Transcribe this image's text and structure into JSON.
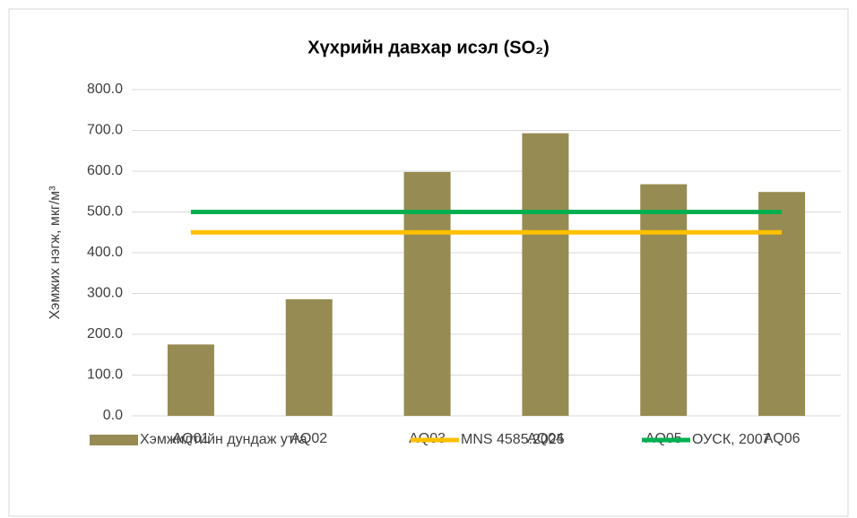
{
  "chart_data": {
    "type": "bar",
    "title": "Хүхрийн давхар исэл (SO₂)",
    "y_label": "Хэмжих нэгж, мкг/м³",
    "categories": [
      "AQ01",
      "AQ02",
      "AQ03",
      "AQ04",
      "AQ05",
      "AQ06"
    ],
    "series": [
      {
        "name": "Хэмжилтийн дундаж утга",
        "type": "bar",
        "color": "#968b52",
        "values": [
          175,
          286,
          598,
          693,
          568,
          549
        ]
      },
      {
        "name": "MNS 4585:2025",
        "type": "line",
        "color": "#ffc000",
        "values": [
          450,
          450,
          450,
          450,
          450,
          450
        ]
      },
      {
        "name": "ОУСК, 2007",
        "type": "line",
        "color": "#00b050",
        "values": [
          500,
          500,
          500,
          500,
          500,
          500
        ]
      }
    ],
    "ylim": [
      0,
      800
    ],
    "yticks": [
      {
        "value": 0,
        "label": "0.0"
      },
      {
        "value": 100,
        "label": "100.0"
      },
      {
        "value": 200,
        "label": "200.0"
      },
      {
        "value": 300,
        "label": "300.0"
      },
      {
        "value": 400,
        "label": "400.0"
      },
      {
        "value": 500,
        "label": "500.0"
      },
      {
        "value": 600,
        "label": "600.0"
      },
      {
        "value": 700,
        "label": "700.0"
      },
      {
        "value": 800,
        "label": "800.0"
      }
    ],
    "grid": true,
    "legend": "bottom"
  }
}
